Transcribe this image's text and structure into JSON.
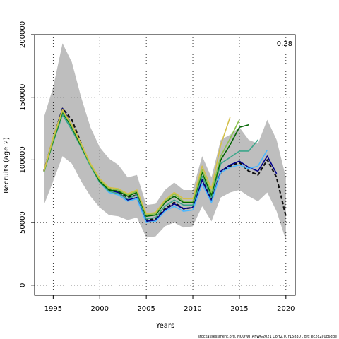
{
  "chart_data": {
    "type": "line",
    "xlabel": "Years",
    "ylabel": "Recruits (age 2)",
    "xlim": [
      1993,
      2021
    ],
    "ylim": [
      -8000,
      200000
    ],
    "xticks": [
      1995,
      2000,
      2005,
      2010,
      2015,
      2020
    ],
    "yticks": [
      0,
      50000,
      100000,
      150000,
      200000
    ],
    "grid": "dotted",
    "annotation": "0.28",
    "footer": "stockassessment.org, NCOWT  AFWG2021  Corr2.0, r15830 , git: ec2c2a0c6dde",
    "band": {
      "color": "#bebebe",
      "x": [
        1994,
        1995,
        1996,
        1997,
        1998,
        1999,
        2000,
        2001,
        2002,
        2003,
        2004,
        2005,
        2006,
        2007,
        2008,
        2009,
        2010,
        2011,
        2012,
        2013,
        2014,
        2015,
        2016,
        2017,
        2018,
        2019,
        2020
      ],
      "upper": [
        134000,
        158000,
        193000,
        178000,
        150000,
        126000,
        110000,
        101000,
        96000,
        86000,
        88000,
        64000,
        65000,
        76000,
        82000,
        76000,
        76000,
        103000,
        86000,
        116000,
        120000,
        126000,
        116000,
        113000,
        132000,
        116000,
        86000
      ],
      "lower": [
        64000,
        83000,
        103000,
        97000,
        83000,
        71000,
        62000,
        56000,
        55000,
        52000,
        54000,
        38000,
        39000,
        47000,
        50000,
        46000,
        47000,
        63000,
        51000,
        70000,
        74000,
        76000,
        71000,
        67000,
        74000,
        59000,
        36000
      ]
    },
    "series": [
      {
        "color": "#111111",
        "dashed": true,
        "width": 2.2,
        "x": [
          1994,
          1995,
          1996,
          1997,
          1998,
          1999,
          2000,
          2001,
          2002,
          2003,
          2004,
          2005,
          2006,
          2007,
          2008,
          2009,
          2010,
          2011,
          2012,
          2013,
          2014,
          2015,
          2016,
          2017,
          2018,
          2019,
          2020
        ],
        "values": [
          91000,
          117000,
          141000,
          132000,
          113000,
          96000,
          83000,
          77000,
          75000,
          70000,
          72000,
          52000,
          53000,
          61000,
          66000,
          61000,
          62000,
          84000,
          68000,
          90000,
          95000,
          98000,
          91000,
          88000,
          100000,
          86000,
          55000
        ]
      },
      {
        "color": "#00008b",
        "x": [
          1994,
          1995,
          1996,
          1997,
          1998,
          1999,
          2000,
          2001,
          2002,
          2003,
          2004,
          2005,
          2006,
          2007,
          2008,
          2009,
          2010,
          2011,
          2012,
          2013,
          2014,
          2015,
          2016,
          2017,
          2018,
          2019
        ],
        "values": [
          91000,
          117000,
          141000,
          128000,
          112000,
          96000,
          83000,
          76000,
          74000,
          68000,
          70000,
          51000,
          52000,
          60000,
          65000,
          61000,
          62000,
          84000,
          67000,
          91000,
          96000,
          99000,
          94000,
          91000,
          103000,
          89000
        ]
      },
      {
        "color": "#4db8ff",
        "x": [
          1994,
          1995,
          1996,
          1997,
          1998,
          1999,
          2000,
          2001,
          2002,
          2003,
          2004,
          2005,
          2006,
          2007,
          2008,
          2009,
          2010,
          2011,
          2012,
          2013,
          2014,
          2015,
          2016,
          2017,
          2018
        ],
        "values": [
          90000,
          115000,
          138000,
          125000,
          110000,
          95000,
          82000,
          74000,
          72000,
          67000,
          69000,
          50000,
          51000,
          59000,
          63000,
          59000,
          60000,
          81000,
          66000,
          90000,
          94000,
          96000,
          93000,
          95000,
          108000
        ]
      },
      {
        "color": "#3aa68a",
        "x": [
          1994,
          1995,
          1996,
          1997,
          1998,
          1999,
          2000,
          2001,
          2002,
          2003,
          2004,
          2005,
          2006,
          2007,
          2008,
          2009,
          2010,
          2011,
          2012,
          2013,
          2014,
          2015,
          2016,
          2017
        ],
        "values": [
          90000,
          114000,
          136000,
          124000,
          110000,
          95000,
          82000,
          75000,
          73000,
          69000,
          72000,
          53000,
          54000,
          63000,
          68000,
          64000,
          64000,
          87000,
          70000,
          97000,
          102000,
          107000,
          107000,
          116000
        ]
      },
      {
        "color": "#006400",
        "x": [
          1994,
          1995,
          1996,
          1997,
          1998,
          1999,
          2000,
          2001,
          2002,
          2003,
          2004,
          2005,
          2006,
          2007,
          2008,
          2009,
          2010,
          2011,
          2012,
          2013,
          2014,
          2015,
          2016
        ],
        "values": [
          90000,
          115000,
          138000,
          126000,
          111000,
          96000,
          83000,
          76000,
          75000,
          71000,
          74000,
          55000,
          56000,
          66000,
          71000,
          66000,
          66000,
          90000,
          72000,
          100000,
          112000,
          126000,
          128000
        ]
      },
      {
        "color": "#8bc34a",
        "x": [
          1994,
          1995,
          1996,
          1997,
          1998,
          1999,
          2000,
          2001,
          2002,
          2003,
          2004,
          2005,
          2006,
          2007,
          2008,
          2009,
          2010,
          2011,
          2012,
          2013,
          2014,
          2015
        ],
        "values": [
          90000,
          116000,
          139000,
          127000,
          112000,
          96000,
          84000,
          77000,
          76000,
          72000,
          75000,
          56000,
          57000,
          67000,
          73000,
          67000,
          67000,
          92000,
          74000,
          103000,
          117000,
          132000
        ]
      },
      {
        "color": "#d4c04a",
        "x": [
          1994,
          1995,
          1996,
          1997,
          1998,
          1999,
          2000,
          2001,
          2002,
          2003,
          2004,
          2005,
          2006,
          2007,
          2008,
          2009,
          2010,
          2011,
          2012,
          2013,
          2014
        ],
        "values": [
          91000,
          118000,
          140000,
          128000,
          113000,
          97000,
          85000,
          78000,
          77000,
          73000,
          76000,
          57000,
          58000,
          68000,
          74000,
          69000,
          69000,
          95000,
          77000,
          112000,
          134000
        ]
      }
    ]
  }
}
